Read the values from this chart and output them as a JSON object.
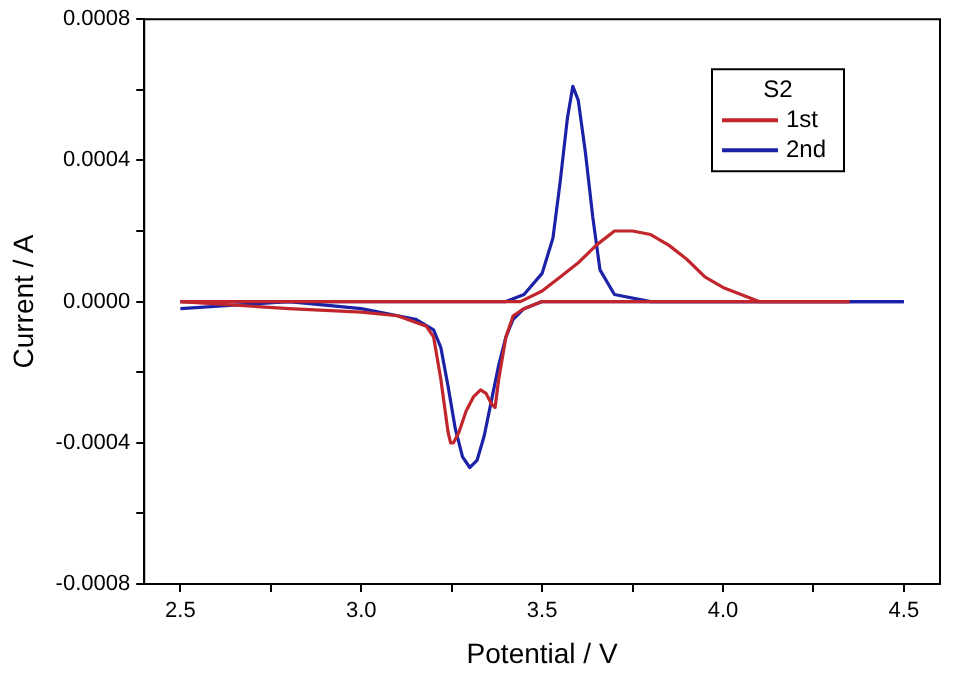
{
  "chart_data": {
    "type": "line",
    "xlabel": "Potential / V",
    "ylabel": "Current / A",
    "xlim": [
      2.4,
      4.6
    ],
    "ylim": [
      -0.0008,
      0.0008
    ],
    "xticks": [
      2.5,
      {
        "value": 2.75,
        "label": null
      },
      {
        "value": 3,
        "label": "3.0"
      },
      {
        "value": 3.25,
        "label": null
      },
      3.5,
      {
        "value": 3.75,
        "label": null
      },
      {
        "value": 4,
        "label": "4.0"
      },
      {
        "value": 4.25,
        "label": null
      },
      4.5
    ],
    "yticks": [
      -0.0008,
      {
        "value": -0.0006,
        "label": null
      },
      -0.0004,
      {
        "value": -0.0002,
        "label": null
      },
      {
        "value": 0,
        "label": "0.0000"
      },
      {
        "value": 0.0002,
        "label": null
      },
      0.0004,
      {
        "value": 0.0006,
        "label": null
      },
      0.0008
    ],
    "legend": "top right",
    "legend_title": "S2",
    "grid": false,
    "marker": "none",
    "series": [
      {
        "name": "1st",
        "color": "#c0262b",
        "x": [
          2.5,
          3.0,
          3.44,
          3.5,
          3.55,
          3.6,
          3.65,
          3.7,
          3.75,
          3.8,
          3.85,
          3.9,
          3.95,
          4.0,
          4.05,
          4.1,
          4.35
        ],
        "values": [
          0,
          0,
          0,
          3e-05,
          7e-05,
          0.00011,
          0.00016,
          0.0002,
          0.0002,
          0.00019,
          0.00016,
          0.00012,
          7e-05,
          4e-05,
          2e-05,
          0,
          0
        ]
      },
      {
        "color": "#c0262b",
        "x": [
          4.35,
          3.5,
          3.45,
          3.42,
          3.4,
          3.38,
          3.37,
          3.36,
          3.345,
          3.33,
          3.31,
          3.29,
          3.27,
          3.255,
          3.247,
          3.24,
          3.22,
          3.2,
          3.18,
          3.1,
          3.0,
          2.8,
          2.5
        ],
        "values": [
          0,
          0,
          -2e-05,
          -4e-05,
          -0.0001,
          -0.00022,
          -0.0003,
          -0.00029,
          -0.00026,
          -0.00025,
          -0.00027,
          -0.00031,
          -0.00037,
          -0.0004,
          -0.0004,
          -0.00037,
          -0.00022,
          -0.0001,
          -7e-05,
          -4e-05,
          -3e-05,
          -2e-05,
          0
        ]
      },
      {
        "name": "2nd",
        "color": "#1c22a8",
        "x": [
          2.5,
          3.4,
          3.45,
          3.5,
          3.53,
          3.55,
          3.57,
          3.585,
          3.6,
          3.62,
          3.64,
          3.66,
          3.7,
          3.8,
          4.5
        ],
        "values": [
          0,
          0,
          2e-05,
          8e-05,
          0.00018,
          0.00034,
          0.00052,
          0.00061,
          0.00057,
          0.00042,
          0.00024,
          9e-05,
          2e-05,
          0,
          0
        ]
      },
      {
        "color": "#1c22a8",
        "x": [
          4.5,
          3.5,
          3.45,
          3.42,
          3.4,
          3.38,
          3.36,
          3.34,
          3.32,
          3.3,
          3.28,
          3.26,
          3.24,
          3.22,
          3.2,
          3.15,
          3.0,
          2.8,
          2.5
        ],
        "values": [
          0,
          0,
          -2e-05,
          -5e-05,
          -0.0001,
          -0.00018,
          -0.00028,
          -0.00038,
          -0.00045,
          -0.00047,
          -0.00044,
          -0.00036,
          -0.00024,
          -0.00013,
          -8e-05,
          -5e-05,
          -2e-05,
          0,
          -2e-05
        ]
      }
    ]
  }
}
